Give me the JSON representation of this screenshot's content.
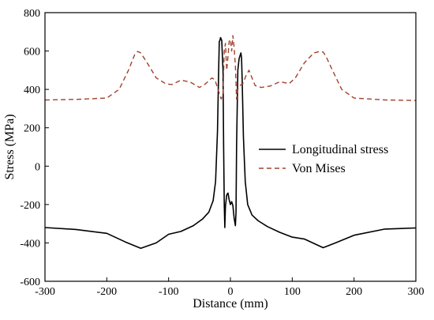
{
  "chart_data": {
    "type": "line",
    "xlabel": "Distance (mm)",
    "ylabel": "Stress (MPa)",
    "xlim": [
      -300,
      300
    ],
    "ylim": [
      -600,
      800
    ],
    "xticks": [
      -300,
      -200,
      -100,
      0,
      100,
      200,
      300
    ],
    "yticks": [
      -600,
      -400,
      -200,
      0,
      200,
      400,
      600,
      800
    ],
    "grid": false,
    "legend_position": "center-right",
    "series": [
      {
        "name": "Longitudinal stress",
        "color": "#000000",
        "dash": "solid",
        "x": [
          -300,
          -250,
          -200,
          -170,
          -145,
          -120,
          -100,
          -80,
          -60,
          -45,
          -35,
          -28,
          -24,
          -21,
          -19,
          -18,
          -17,
          -16,
          -14,
          -12,
          -11,
          -10,
          -9,
          -8,
          -6,
          -4,
          -2,
          0,
          2,
          4,
          6,
          8,
          9,
          10,
          12,
          14,
          16,
          17,
          18,
          19,
          21,
          24,
          28,
          35,
          45,
          60,
          80,
          100,
          120,
          150,
          170,
          200,
          250,
          300
        ],
        "y": [
          -320,
          -330,
          -350,
          -395,
          -428,
          -400,
          -355,
          -340,
          -310,
          -275,
          -240,
          -180,
          -80,
          180,
          500,
          650,
          655,
          670,
          655,
          500,
          100,
          -200,
          -320,
          -210,
          -150,
          -140,
          -175,
          -200,
          -185,
          -205,
          -270,
          -310,
          -240,
          100,
          500,
          560,
          580,
          590,
          565,
          450,
          150,
          -80,
          -200,
          -255,
          -285,
          -315,
          -345,
          -370,
          -380,
          -425,
          -400,
          -360,
          -328,
          -322
        ]
      },
      {
        "name": "Von Mises",
        "color": "#a0422e",
        "dash": "6,4",
        "x": [
          -300,
          -250,
          -200,
          -180,
          -165,
          -155,
          -150,
          -145,
          -135,
          -120,
          -105,
          -95,
          -80,
          -65,
          -50,
          -40,
          -30,
          -25,
          -20,
          -15,
          -12,
          -10,
          -8,
          -6,
          -4,
          -2,
          0,
          2,
          4,
          6,
          8,
          10,
          12,
          15,
          20,
          25,
          30,
          40,
          50,
          65,
          80,
          95,
          105,
          120,
          135,
          145,
          150,
          155,
          165,
          180,
          200,
          250,
          300
        ],
        "y": [
          345,
          348,
          355,
          400,
          500,
          580,
          598,
          590,
          540,
          460,
          430,
          425,
          448,
          438,
          410,
          430,
          460,
          450,
          400,
          350,
          380,
          600,
          640,
          500,
          570,
          650,
          660,
          600,
          680,
          620,
          520,
          350,
          400,
          420,
          430,
          470,
          500,
          420,
          410,
          418,
          440,
          430,
          460,
          540,
          590,
          598,
          595,
          570,
          500,
          400,
          355,
          345,
          342
        ]
      }
    ]
  }
}
